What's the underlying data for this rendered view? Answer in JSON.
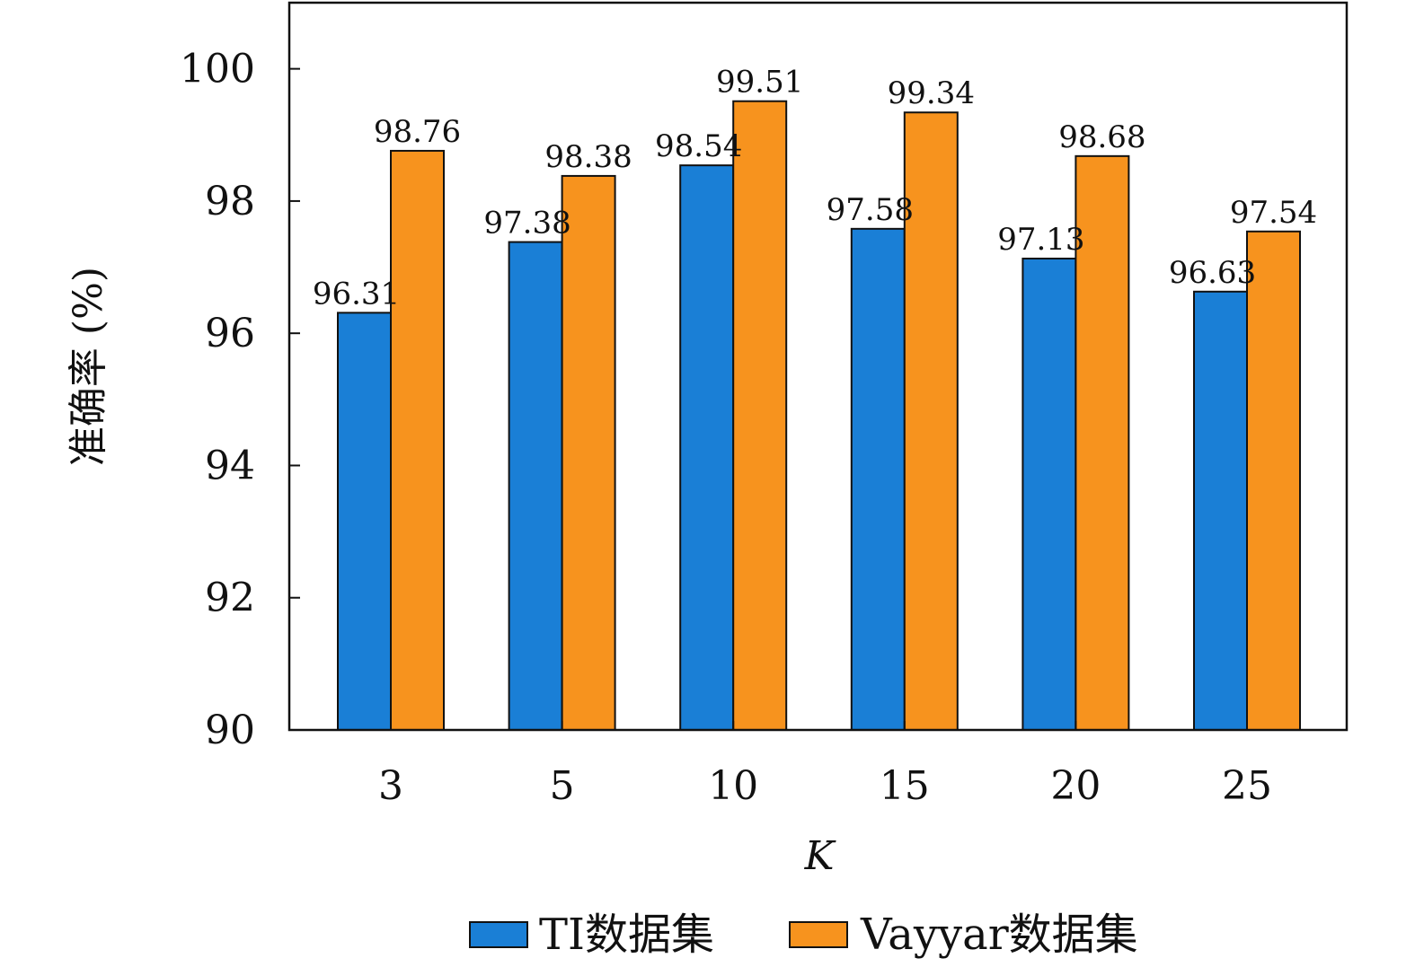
{
  "chart_data": {
    "type": "bar",
    "title": "",
    "xlabel": "K",
    "ylabel": "准确率 (%)",
    "categories": [
      "3",
      "5",
      "10",
      "15",
      "20",
      "25"
    ],
    "series": [
      {
        "name": "TI数据集",
        "values": [
          96.31,
          97.38,
          98.54,
          97.58,
          97.13,
          96.63
        ],
        "color": "#1a7fd6"
      },
      {
        "name": "Vayyar数据集",
        "values": [
          98.76,
          98.38,
          99.51,
          99.34,
          98.68,
          97.54
        ],
        "color": "#f7931e"
      }
    ],
    "data_labels": [
      [
        "96.31",
        "97.38",
        "98.54",
        "97.58",
        "97.13",
        "96.63"
      ],
      [
        "98.76",
        "98.38",
        "99.51",
        "99.34",
        "98.68",
        "97.54"
      ]
    ],
    "ylim": [
      90,
      101
    ],
    "yticks": [
      "90",
      "92",
      "94",
      "96",
      "98",
      "100"
    ],
    "grid": false,
    "legend_position": "bottom"
  }
}
